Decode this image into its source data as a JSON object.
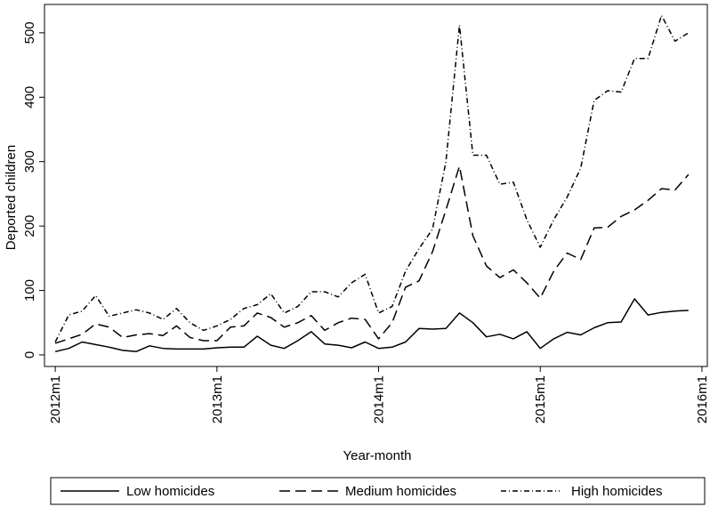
{
  "chart_data": {
    "type": "line",
    "x_label": "Year-month",
    "y_label": "Deported children",
    "x": [
      624,
      625,
      626,
      627,
      628,
      629,
      630,
      631,
      632,
      633,
      634,
      635,
      636,
      637,
      638,
      639,
      640,
      641,
      642,
      643,
      644,
      645,
      646,
      647,
      648,
      649,
      650,
      651,
      652,
      653,
      654,
      655,
      656,
      657,
      658,
      659,
      660,
      661,
      662,
      663,
      664,
      665,
      666,
      667,
      668,
      669,
      670,
      671
    ],
    "xlim": [
      623.2,
      672.4
    ],
    "xticks": [
      {
        "value": 624,
        "label": "2012m1"
      },
      {
        "value": 636,
        "label": "2013m1"
      },
      {
        "value": 648,
        "label": "2014m1"
      },
      {
        "value": 660,
        "label": "2015m1"
      },
      {
        "value": 672,
        "label": "2016m1"
      }
    ],
    "ylim": [
      -18,
      544
    ],
    "yticks": [
      0,
      100,
      200,
      300,
      400,
      500
    ],
    "grid": false,
    "legend": "bottom",
    "series": [
      {
        "name": "Low homicides",
        "color": "#000000",
        "dash": "none",
        "values": [
          5,
          10,
          20,
          16,
          12,
          7,
          5,
          14,
          10,
          9,
          9,
          9,
          11,
          12,
          12,
          29,
          15,
          10,
          22,
          36,
          17,
          15,
          11,
          20,
          10,
          12,
          20,
          41,
          40,
          41,
          65,
          50,
          28,
          32,
          25,
          36,
          10,
          25,
          35,
          31,
          42,
          50,
          51,
          87,
          62,
          66,
          68,
          69
        ]
      },
      {
        "name": "Medium homicides",
        "color": "#000000",
        "dash": "12,6",
        "values": [
          18,
          25,
          32,
          48,
          43,
          27,
          31,
          33,
          30,
          45,
          27,
          22,
          22,
          43,
          45,
          65,
          58,
          43,
          50,
          61,
          38,
          50,
          57,
          55,
          25,
          50,
          105,
          115,
          160,
          225,
          293,
          185,
          138,
          120,
          132,
          112,
          88,
          130,
          158,
          148,
          197,
          198,
          215,
          225,
          240,
          258,
          256,
          280
        ]
      },
      {
        "name": "High homicides",
        "color": "#000000",
        "dash": "6,3,1,3",
        "values": [
          20,
          62,
          68,
          92,
          60,
          65,
          70,
          65,
          55,
          72,
          50,
          38,
          45,
          55,
          72,
          78,
          95,
          65,
          75,
          98,
          98,
          90,
          112,
          125,
          65,
          75,
          130,
          165,
          195,
          300,
          512,
          310,
          310,
          265,
          268,
          210,
          167,
          210,
          245,
          290,
          395,
          410,
          408,
          460,
          460,
          527,
          487,
          500
        ]
      }
    ]
  }
}
